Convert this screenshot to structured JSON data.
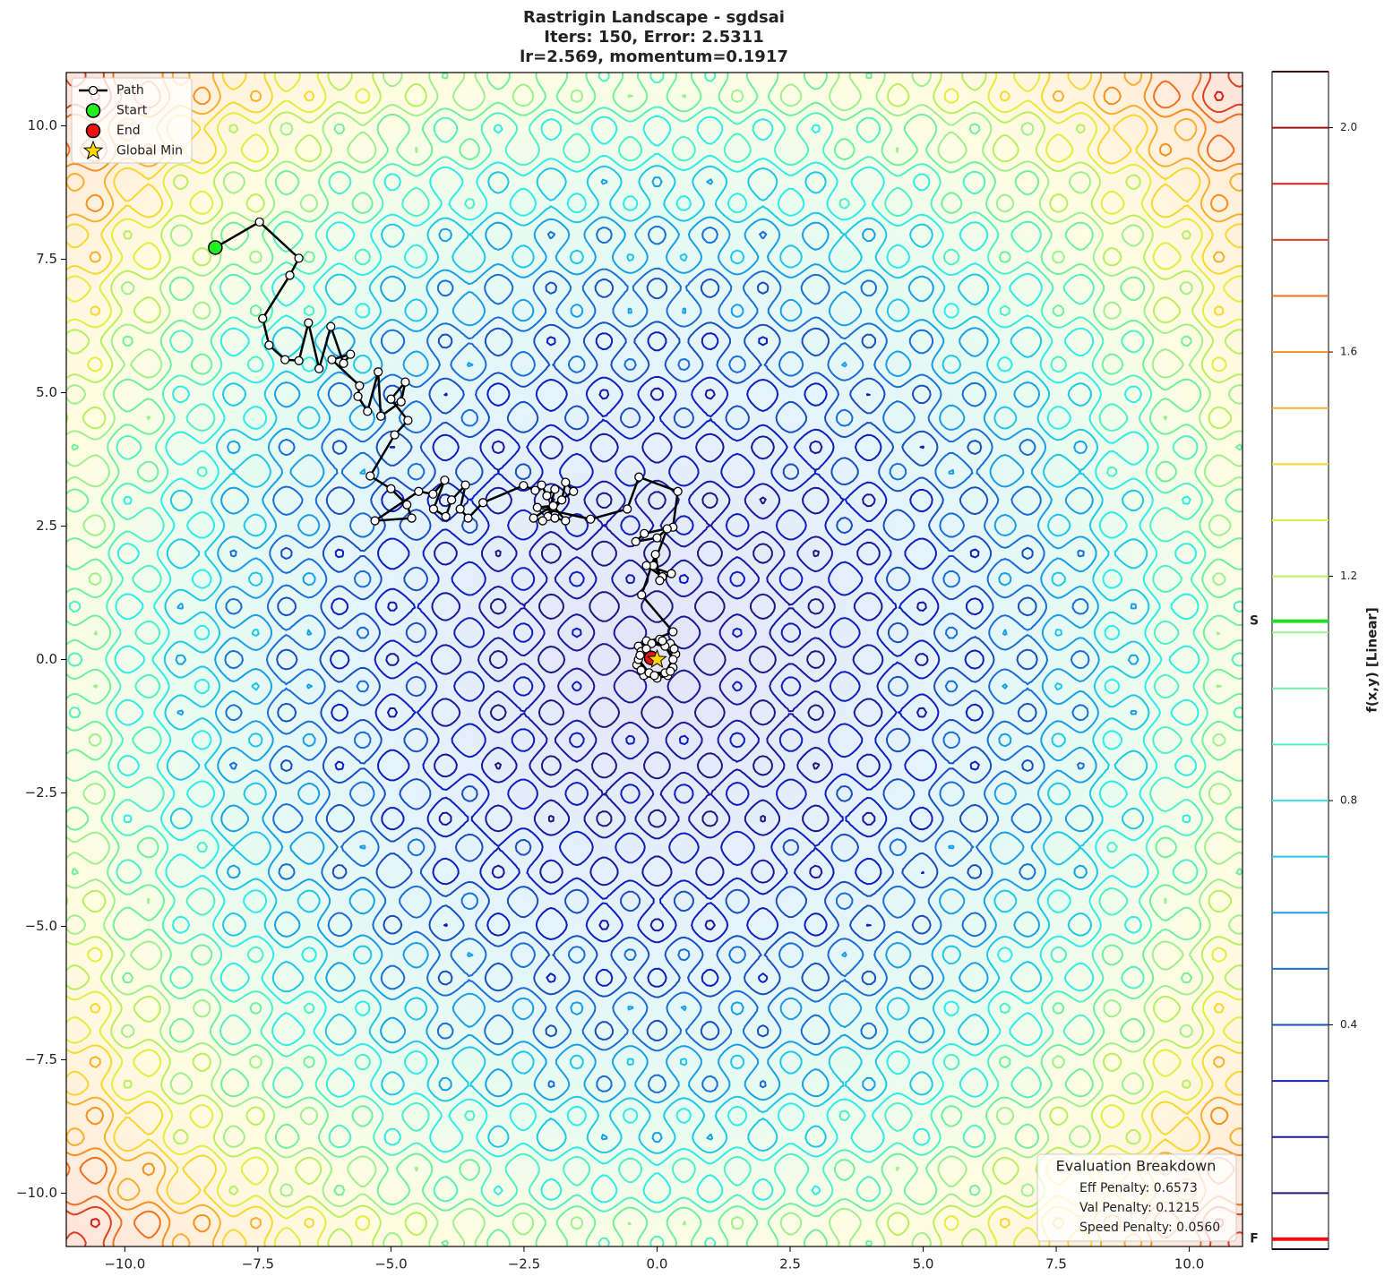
{
  "chart_data": {
    "type": "contour",
    "title": "Rastrigin Landscape - sgdsai",
    "subtitle": [
      "Iters: 150, Error: 2.5311",
      "lr=2.569, momentum=0.1917"
    ],
    "xlim": [
      -11.1,
      11
    ],
    "ylim": [
      -11,
      11
    ],
    "xticks": [
      {
        "value": -10,
        "label": "−10.0"
      },
      {
        "value": -7.5,
        "label": "−7.5"
      },
      {
        "value": -5,
        "label": "−5.0"
      },
      {
        "value": -2.5,
        "label": "−2.5"
      },
      {
        "value": 0,
        "label": "0.0"
      },
      {
        "value": 2.5,
        "label": "2.5"
      },
      {
        "value": 5,
        "label": "5.0"
      },
      {
        "value": 7.5,
        "label": "7.5"
      },
      {
        "value": 10,
        "label": "10.0"
      }
    ],
    "yticks": [
      {
        "value": -10,
        "label": "−10.0"
      },
      {
        "value": -7.5,
        "label": "−7.5"
      },
      {
        "value": -5,
        "label": "−5.0"
      },
      {
        "value": -2.5,
        "label": "−2.5"
      },
      {
        "value": 0,
        "label": "0.0"
      },
      {
        "value": 2.5,
        "label": "2.5"
      },
      {
        "value": 5,
        "label": "5.0"
      },
      {
        "value": 7.5,
        "label": "7.5"
      },
      {
        "value": 10,
        "label": "10.0"
      }
    ],
    "levels": [
      0.0,
      0.1,
      0.2,
      0.3,
      0.4,
      0.5,
      0.6,
      0.7,
      0.8,
      0.9,
      1.0,
      1.1,
      1.2,
      1.3,
      1.4,
      1.5,
      1.6,
      1.7,
      1.8,
      1.9,
      2.0,
      2.1
    ],
    "level_colors": [
      "#111133",
      "#1c1c80",
      "#1a1aa0",
      "#1020c0",
      "#1a50c0",
      "#1a70d8",
      "#1aa0e8",
      "#20c8e8",
      "#30ece8",
      "#50f0c8",
      "#70f0a0",
      "#a0f090",
      "#b8f060",
      "#e0f040",
      "#f8d830",
      "#f8b030",
      "#f89020",
      "#f07020",
      "#e04020",
      "#d02020",
      "#a01010",
      "#401010"
    ],
    "clim": [
      0,
      2.1
    ],
    "cticks": [
      0.4,
      0.8,
      1.2,
      1.6,
      {
        "value": 2,
        "label": "2.0"
      }
    ],
    "colorbar_label": "f(x,y) [Linear]",
    "colorbar_markers": [
      {
        "label": "S",
        "value": 1.12,
        "color": "#22dd22"
      },
      {
        "label": "F",
        "value": 0.018,
        "color": "#ee1111"
      }
    ],
    "path": {
      "name": "Path",
      "x": [
        -8.3,
        -7.47,
        -6.73,
        -6.9,
        -7.41,
        -7.29,
        -6.99,
        -6.73,
        -6.55,
        -6.35,
        -6.13,
        -5.89,
        -5.76,
        -6.11,
        -5.59,
        -5.62,
        -5.44,
        -5.24,
        -5.19,
        -4.81,
        -4.73,
        -5.0,
        -4.68,
        -4.93,
        -5.39,
        -5.0,
        -4.7,
        -4.61,
        -5.3,
        -4.48,
        -4.21,
        -3.99,
        -4.2,
        -3.97,
        -3.86,
        -3.6,
        -3.7,
        -3.55,
        -3.27,
        -2.51,
        -2.29,
        -2.17,
        -2.07,
        -1.92,
        -2.05,
        -1.79,
        -1.72,
        -1.57,
        -2.32,
        -2.15,
        -1.92,
        -1.72,
        -1.95,
        -2.25,
        -1.25,
        -0.56,
        -0.34,
        0.39,
        0.3,
        -0.24,
        -0.4,
        0.0,
        0.19,
        -0.07,
        0.1,
        -0.2,
        0.27,
        0.05,
        -0.03,
        -0.29,
        0.3,
        -0.35,
        -0.2,
        0.05,
        0.25,
        0.35,
        0.3,
        0.2,
        0.0,
        -0.25,
        -0.38,
        -0.3,
        -0.1,
        0.15,
        0.3,
        0.15,
        -0.15,
        -0.35,
        -0.2,
        0.1,
        0.32,
        0.25,
        -0.05,
        -0.3,
        -0.32,
        -0.11
      ],
      "y": [
        7.72,
        8.2,
        7.52,
        7.2,
        6.39,
        5.89,
        5.62,
        5.6,
        6.31,
        5.45,
        6.24,
        5.55,
        5.72,
        5.62,
        5.13,
        4.93,
        4.65,
        5.39,
        4.56,
        4.83,
        5.2,
        4.88,
        4.48,
        4.21,
        3.44,
        3.2,
        2.9,
        2.65,
        2.6,
        3.15,
        3.1,
        3.36,
        2.82,
        2.68,
        2.99,
        3.27,
        2.82,
        2.65,
        2.94,
        3.26,
        3.17,
        3.27,
        3.07,
        3.19,
        2.68,
        2.99,
        3.32,
        3.15,
        2.65,
        2.6,
        2.65,
        2.6,
        2.88,
        2.85,
        2.63,
        2.82,
        3.42,
        3.15,
        2.48,
        2.36,
        2.21,
        2.28,
        2.45,
        1.76,
        1.55,
        1.76,
        1.61,
        1.48,
        1.97,
        1.21,
        0.52,
        0.25,
        0.35,
        0.38,
        0.3,
        0.1,
        -0.15,
        -0.3,
        -0.35,
        -0.3,
        -0.1,
        0.15,
        0.3,
        0.25,
        0.0,
        -0.25,
        -0.25,
        0.0,
        0.2,
        0.35,
        0.2,
        -0.22,
        -0.3,
        -0.2,
        0.08,
        0.03
      ]
    },
    "markers": [
      {
        "name": "Start",
        "x": -8.3,
        "y": 7.72,
        "color": "#22ee22",
        "shape": "circle"
      },
      {
        "name": "End",
        "x": -0.11,
        "y": 0.03,
        "color": "#ee1111",
        "shape": "circle"
      },
      {
        "name": "Global Min",
        "x": 0,
        "y": 0,
        "color": "#ffd700",
        "shape": "star"
      }
    ],
    "legend_loc": "upper left",
    "info_box": {
      "title": "Evaluation Breakdown",
      "lines": [
        "Eff Penalty: 0.6573",
        "Val Penalty: 0.1215",
        "Speed Penalty: 0.0560"
      ]
    }
  }
}
